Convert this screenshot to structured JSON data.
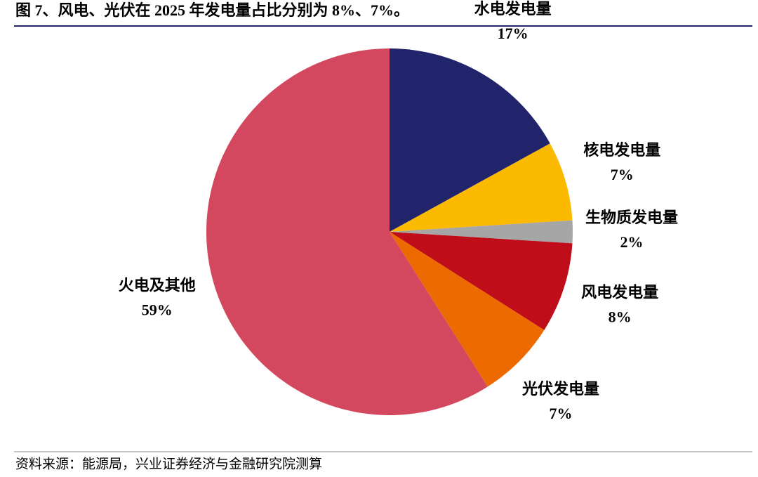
{
  "chart_data": {
    "type": "pie",
    "title": "图 7、风电、光伏在 2025 年发电量占比分别为 8%、7%。",
    "source": "资料来源：能源局，兴业证券经济与金融研究院测算",
    "categories": [
      "水电发电量",
      "核电发电量",
      "生物质发电量",
      "风电发电量",
      "光伏发电量",
      "火电及其他"
    ],
    "values": [
      17,
      7,
      2,
      8,
      7,
      59
    ],
    "value_labels": [
      "17%",
      "7%",
      "2%",
      "8%",
      "7%",
      "59%"
    ],
    "colors": [
      "#22246b",
      "#fbb900",
      "#a6a6a6",
      "#c00d1a",
      "#ec6a00",
      "#d4485f"
    ]
  }
}
